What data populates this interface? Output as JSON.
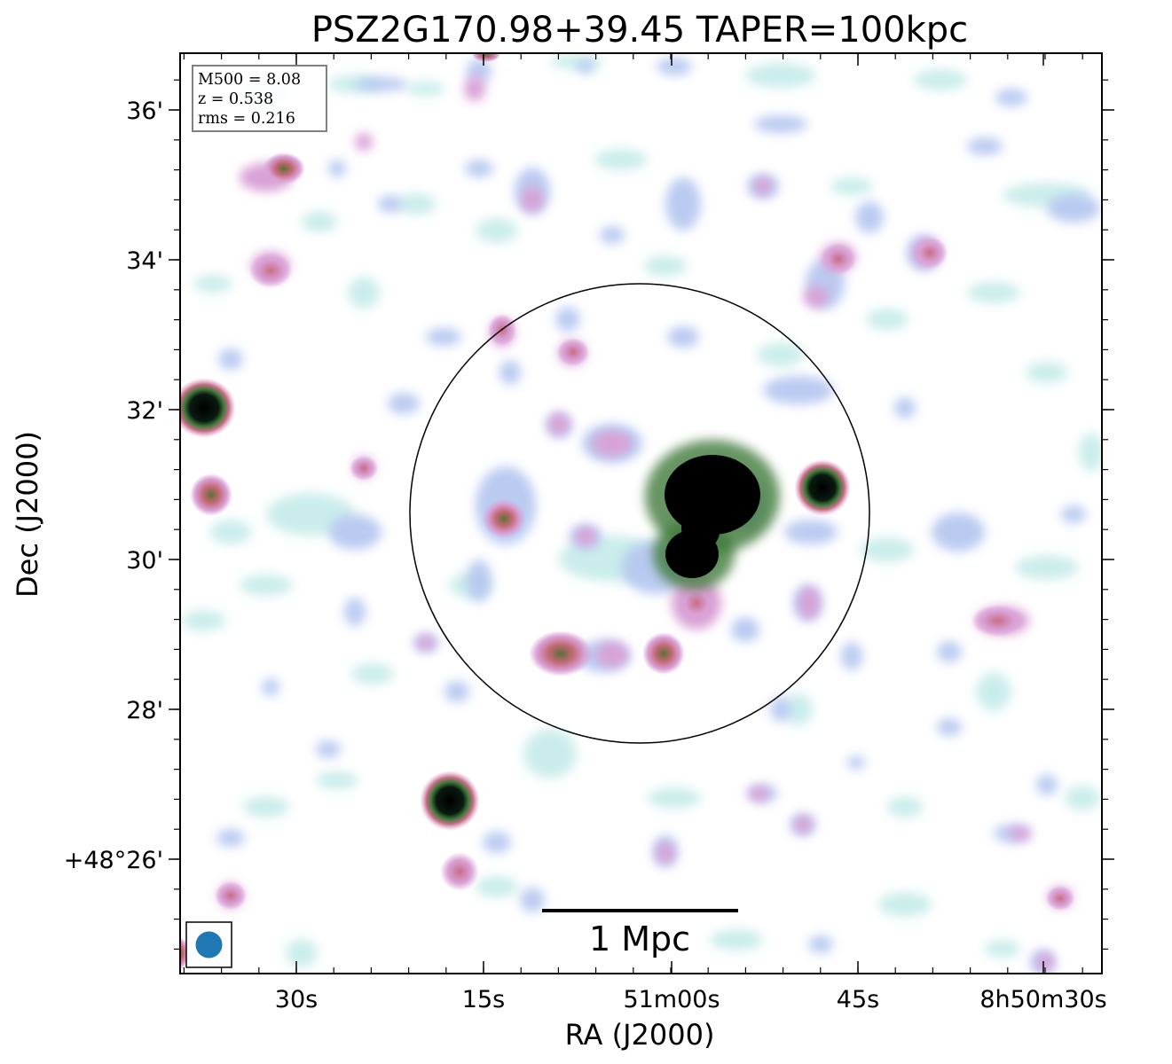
{
  "title": "PSZ2G170.98+39.45 TAPER=100kpc",
  "x_axis_label": "RA (J2000)",
  "y_axis_label": "Dec (J2000)",
  "x_ticks": [
    "30s",
    "15s",
    "51m00s",
    "45s",
    "8h50m30s"
  ],
  "y_ticks": [
    "36'",
    "34'",
    "32'",
    "30'",
    "28'",
    "+48°26'"
  ],
  "info_box": {
    "mass": "M500 = 8.08",
    "redshift": "z = 0.538",
    "rms": "rms = 0.216"
  },
  "scale_bar_label": "1 Mpc",
  "colors": {
    "frame": "#000000",
    "beam": "#1f77b4",
    "emission_faint": "#c8ecea",
    "emission_low": "#b7c8f0",
    "emission_mid": "#d9a1d6",
    "emission_high": "#c96d86",
    "emission_peak": "#4a7a3a",
    "emission_saturated": "#000000"
  }
}
